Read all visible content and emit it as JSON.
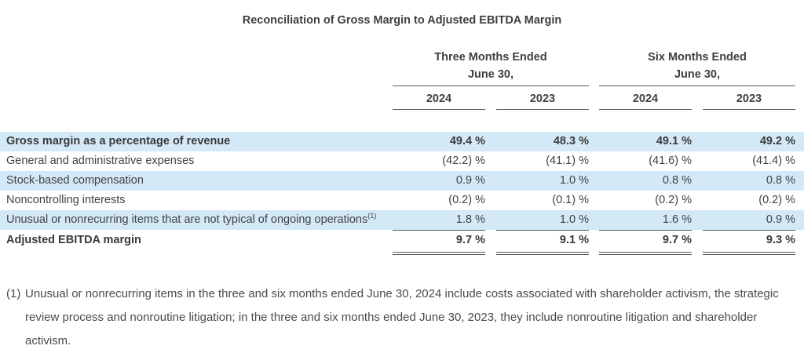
{
  "title": "Reconciliation of Gross Margin to Adjusted EBITDA Margin",
  "colors": {
    "row_highlight": "#d3e9f8",
    "text": "#424242",
    "rule": "#565656"
  },
  "table": {
    "col_groups": [
      {
        "line1": "Three Months Ended",
        "line2": "June 30,"
      },
      {
        "line1": "Six Months Ended",
        "line2": "June 30,"
      }
    ],
    "year_headers": [
      "2024",
      "2023",
      "2024",
      "2023"
    ],
    "rows": [
      {
        "label": "Gross margin as a percentage of revenue",
        "bold": true,
        "shaded": true,
        "values": [
          "49.4 %",
          "48.3 %",
          "49.1 %",
          "49.2 %"
        ]
      },
      {
        "label": "General and administrative expenses",
        "bold": false,
        "shaded": false,
        "values": [
          "(42.2) %",
          "(41.1) %",
          "(41.6) %",
          "(41.4) %"
        ]
      },
      {
        "label": "Stock-based compensation",
        "bold": false,
        "shaded": true,
        "values": [
          "0.9 %",
          "1.0 %",
          "0.8 %",
          "0.8 %"
        ]
      },
      {
        "label": "Noncontrolling interests",
        "bold": false,
        "shaded": false,
        "values": [
          "(0.2) %",
          "(0.1) %",
          "(0.2) %",
          "(0.2) %"
        ]
      },
      {
        "label": "Unusual or nonrecurring items that are not typical of ongoing operations",
        "sup": "(1)",
        "bold": false,
        "shaded": true,
        "rule_below": true,
        "values": [
          "1.8 %",
          "1.0 %",
          "1.6 %",
          "0.9 %"
        ]
      },
      {
        "label": "Adjusted EBITDA margin",
        "bold": true,
        "shaded": false,
        "double_rule_below": true,
        "values": [
          "9.7 %",
          "9.1 %",
          "9.7 %",
          "9.3 %"
        ]
      }
    ]
  },
  "footnote": {
    "marker": "(1)",
    "text": "Unusual or nonrecurring items in the three and six months ended June 30, 2024 include costs associated with shareholder activism, the strategic review process and nonroutine litigation; in the three and six months ended June 30, 2023, they include nonroutine litigation and shareholder activism."
  }
}
